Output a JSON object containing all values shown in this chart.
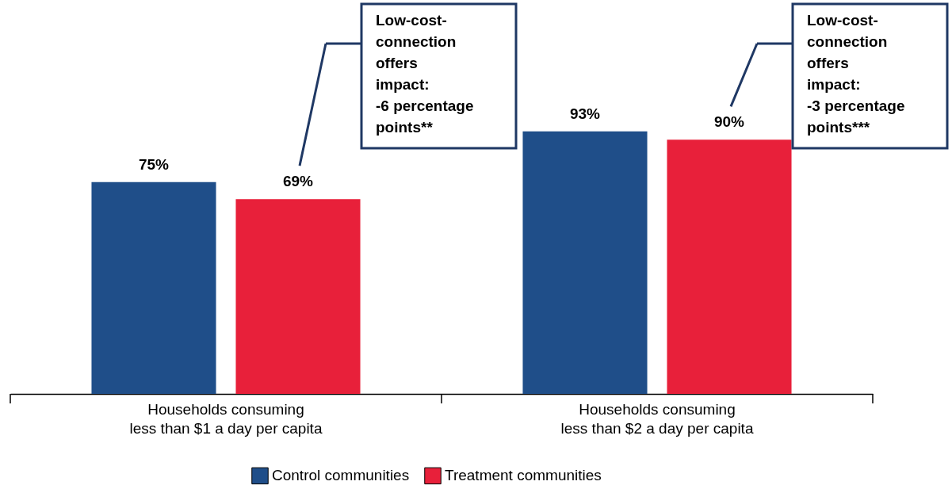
{
  "chart_data": {
    "type": "bar",
    "categories": [
      "Households consuming\nless than $1 a day per capita",
      "Households consuming\nless than $2 a day per capita"
    ],
    "series": [
      {
        "name": "Control communities",
        "color": "#1f4e89",
        "values": [
          75,
          93
        ],
        "value_labels": [
          "75%",
          "93%"
        ]
      },
      {
        "name": "Treatment communities",
        "color": "#e8203a",
        "values": [
          69,
          90
        ],
        "value_labels": [
          "69%",
          "90%"
        ]
      }
    ],
    "legend": "bottom",
    "annotations": [
      "Low-cost-\nconnection\noffers\nimpact:\n-6 percentage\npoints**",
      "Low-cost-\nconnection\noffers\nimpact:\n-3 percentage\npoints***"
    ]
  }
}
